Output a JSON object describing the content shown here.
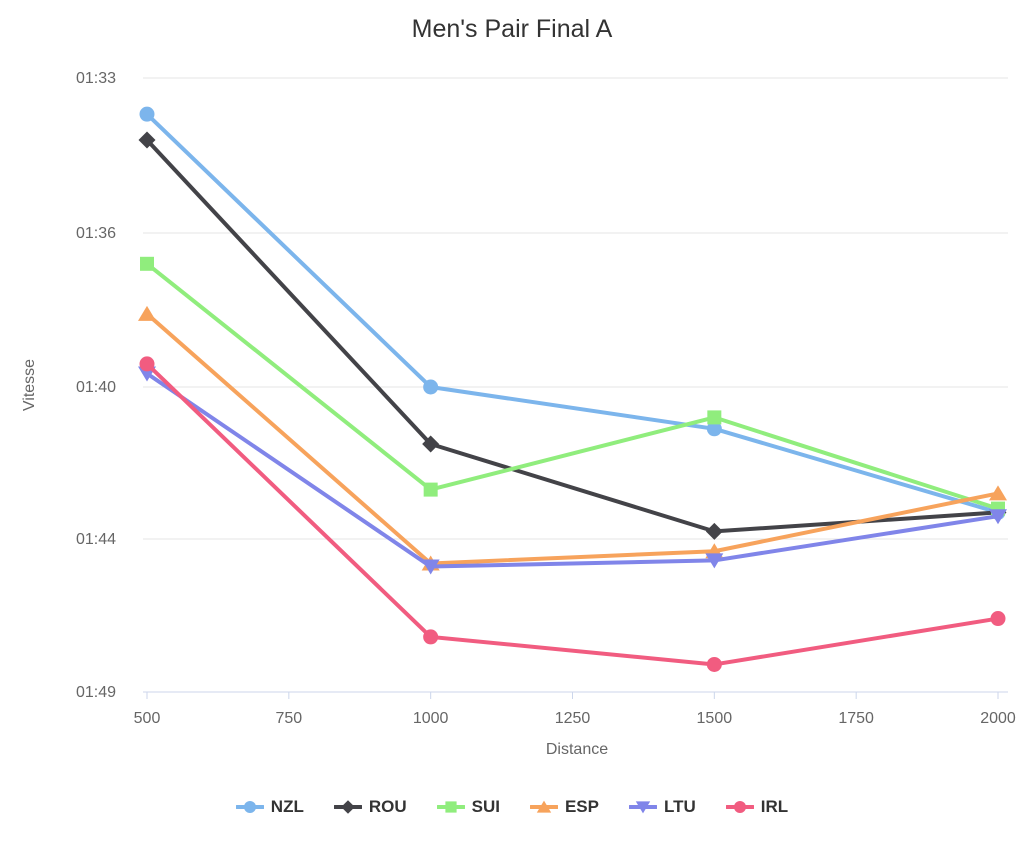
{
  "chart_data": {
    "type": "line",
    "title": "Men's Pair Final A",
    "xlabel": "Distance",
    "ylabel": "Vitesse",
    "x": [
      500,
      1000,
      1500,
      2000
    ],
    "x_ticks": [
      "500",
      "750",
      "1000",
      "1250",
      "1500",
      "1750",
      "2000"
    ],
    "x_tick_values": [
      500,
      750,
      1000,
      1250,
      1500,
      1750,
      2000
    ],
    "xlim": [
      500,
      2000
    ],
    "y_axis": {
      "tick_labels": [
        "01:33",
        "01:36",
        "01:40",
        "01:44",
        "01:49"
      ],
      "tick_seconds": [
        93,
        96,
        100,
        104,
        109
      ],
      "note": "pace per 500m, faster (lower time) at top",
      "grid": "horizontal"
    },
    "series": [
      {
        "name": "NZL",
        "color": "#7cb5ec",
        "marker": "circle",
        "values_seconds": [
          93.7,
          100.0,
          101.1,
          103.3
        ]
      },
      {
        "name": "ROU",
        "color": "#434348",
        "marker": "diamond",
        "values_seconds": [
          94.2,
          101.5,
          103.8,
          103.3
        ]
      },
      {
        "name": "SUI",
        "color": "#90ed7d",
        "marker": "square",
        "values_seconds": [
          96.8,
          102.7,
          100.8,
          103.2
        ]
      },
      {
        "name": "ESP",
        "color": "#f7a35c",
        "marker": "triangle-up",
        "values_seconds": [
          98.1,
          104.8,
          104.4,
          102.8
        ]
      },
      {
        "name": "LTU",
        "color": "#8085e9",
        "marker": "triangle-down",
        "values_seconds": [
          99.65,
          104.9,
          104.7,
          103.4
        ]
      },
      {
        "name": "IRL",
        "color": "#f15c80",
        "marker": "circle",
        "values_seconds": [
          99.4,
          107.2,
          108.1,
          106.6
        ]
      }
    ],
    "legend_position": "bottom",
    "colors": {
      "grid_line": "#e6e6e6",
      "axis_line": "#ccd6eb",
      "tick_label": "#666666",
      "title_text": "#333333",
      "legend_text": "#333333",
      "background": "#ffffff"
    }
  }
}
